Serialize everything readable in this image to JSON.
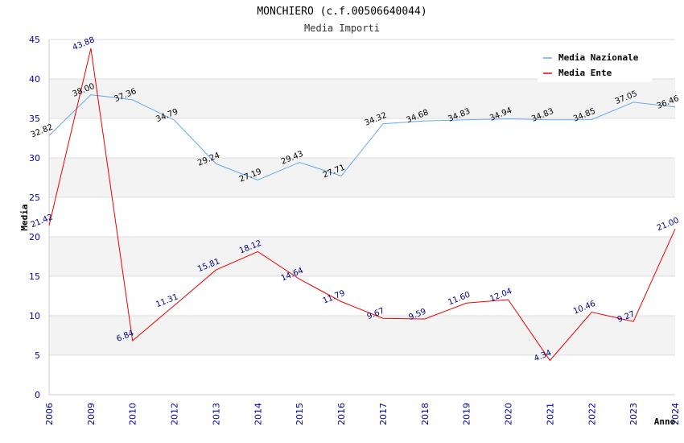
{
  "chart_data": {
    "type": "line",
    "title": "MONCHIERO (c.f.00506640044)",
    "subtitle": "Media Importi",
    "xlabel": "Anno",
    "ylabel": "Media",
    "ylim": [
      0,
      45
    ],
    "yticks": [
      0,
      5,
      10,
      15,
      20,
      25,
      30,
      35,
      40,
      45
    ],
    "categories": [
      "2006",
      "2009",
      "2010",
      "2012",
      "2013",
      "2014",
      "2015",
      "2016",
      "2017",
      "2018",
      "2019",
      "2020",
      "2021",
      "2022",
      "2023",
      "2024"
    ],
    "series": [
      {
        "name": "Media Nazionale",
        "color": "#66aaee",
        "values": [
          32.82,
          38.0,
          37.36,
          34.79,
          29.24,
          27.19,
          29.43,
          27.71,
          34.32,
          34.68,
          34.83,
          34.94,
          34.83,
          34.85,
          37.05,
          36.46
        ],
        "labels": [
          "32.82",
          "38.00",
          "37.36",
          "34.79",
          "29.24",
          "27.19",
          "29.43",
          "27.71",
          "34.32",
          "34.68",
          "34.83",
          "34.94",
          "34.83",
          "34.85",
          "37.05",
          "36.46"
        ]
      },
      {
        "name": "Media Ente",
        "color": "#ee0000",
        "values": [
          21.42,
          43.88,
          6.84,
          11.31,
          15.81,
          18.12,
          14.64,
          11.79,
          9.67,
          9.59,
          11.6,
          12.04,
          4.34,
          10.46,
          9.27,
          21.0
        ],
        "labels": [
          "21.42",
          "43.88",
          "6.84",
          "11.31",
          "15.81",
          "18.12",
          "14.64",
          "11.79",
          "9.67",
          "9.59",
          "11.60",
          "12.04",
          "4.34",
          "10.46",
          "9.27",
          "21.00"
        ]
      }
    ],
    "legend": "top-right",
    "grid": true
  }
}
